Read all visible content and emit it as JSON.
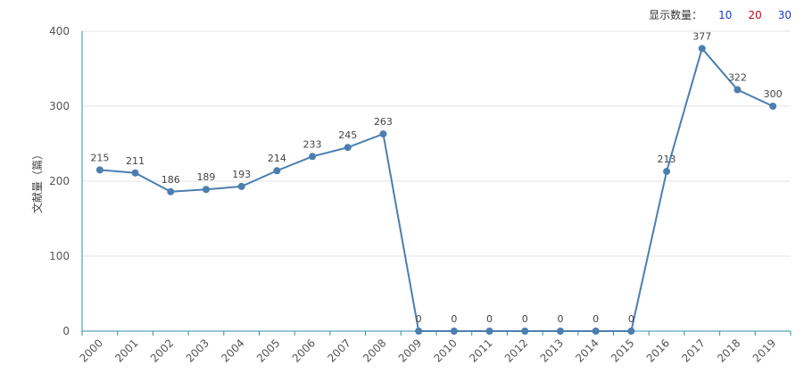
{
  "controls": {
    "label": "显示数量：",
    "options": [
      {
        "text": "10",
        "color": "#1a3ccf"
      },
      {
        "text": "20",
        "color": "#d0021b"
      },
      {
        "text": "30",
        "color": "#1a3ccf"
      }
    ]
  },
  "chart_data": {
    "type": "line",
    "categories": [
      "2000",
      "2001",
      "2002",
      "2003",
      "2004",
      "2005",
      "2006",
      "2007",
      "2008",
      "2009",
      "2010",
      "2011",
      "2012",
      "2013",
      "2014",
      "2015",
      "2016",
      "2017",
      "2018",
      "2019"
    ],
    "series": [
      {
        "values": [
          215,
          211,
          186,
          189,
          193,
          214,
          233,
          245,
          263,
          0,
          0,
          0,
          0,
          0,
          0,
          0,
          213,
          377,
          322,
          300
        ]
      }
    ],
    "ylabel": "文献量（篇）",
    "ylim": [
      0,
      400
    ],
    "yticks": [
      0,
      100,
      200,
      300,
      400
    ],
    "grid": true,
    "line_color": "#4a7fb0",
    "axis_color": "#2a8fb0"
  }
}
